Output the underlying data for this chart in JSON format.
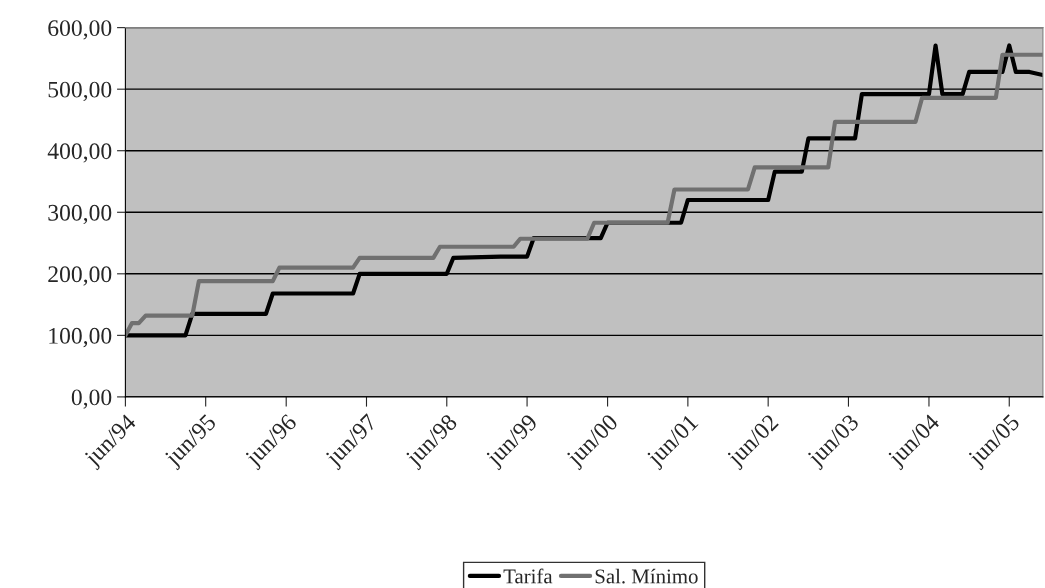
{
  "chart_data": {
    "type": "line",
    "series": [
      {
        "name": "Tarifa",
        "color": "#000000",
        "x": [
          "1994-06",
          "1995-03",
          "1995-04",
          "1996-03",
          "1996-04",
          "1997-04",
          "1997-05",
          "1998-06",
          "1998-07",
          "1999-02",
          "1999-06",
          "1999-07",
          "2000-01",
          "2000-05",
          "2000-06",
          "2001-05",
          "2001-06",
          "2002-06",
          "2002-07",
          "2002-11",
          "2002-12",
          "2003-07",
          "2003-08",
          "2004-06",
          "2004-07",
          "2004-08",
          "2004-11",
          "2004-12",
          "2005-05",
          "2005-06",
          "2005-07",
          "2005-09",
          "2005-11"
        ],
        "values": [
          100,
          100,
          135,
          135,
          168,
          168,
          200,
          200,
          226,
          228,
          228,
          258,
          258,
          258,
          283,
          283,
          320,
          320,
          366,
          366,
          420,
          420,
          492,
          492,
          571,
          492,
          492,
          528,
          528,
          571,
          528,
          528,
          523
        ]
      },
      {
        "name": "Sal. Mínimo",
        "color": "#707070",
        "x": [
          "1994-06",
          "1994-07",
          "1994-08",
          "1994-09",
          "1995-04",
          "1995-05",
          "1996-04",
          "1996-05",
          "1997-04",
          "1997-05",
          "1998-04",
          "1998-05",
          "1999-04",
          "1999-05",
          "2000-03",
          "2000-04",
          "2001-03",
          "2001-04",
          "2002-03",
          "2002-04",
          "2003-03",
          "2003-04",
          "2004-04",
          "2004-05",
          "2005-04",
          "2005-05",
          "2005-11"
        ],
        "values": [
          100,
          120,
          120,
          132,
          132,
          188,
          188,
          210,
          210,
          226,
          226,
          244,
          244,
          257,
          257,
          283,
          283,
          337,
          337,
          373,
          373,
          447,
          447,
          486,
          486,
          556,
          556
        ]
      }
    ],
    "xlim": [
      "1994-06",
      "2005-11"
    ],
    "xticks": [
      {
        "value": "1994-06",
        "label": "jun/94"
      },
      {
        "value": "1995-06",
        "label": "jun/95"
      },
      {
        "value": "1996-06",
        "label": "jun/96"
      },
      {
        "value": "1997-06",
        "label": "jun/97"
      },
      {
        "value": "1998-06",
        "label": "jun/98"
      },
      {
        "value": "1999-06",
        "label": "jun/99"
      },
      {
        "value": "2000-06",
        "label": "jun/00"
      },
      {
        "value": "2001-06",
        "label": "jun/01"
      },
      {
        "value": "2002-06",
        "label": "jun/02"
      },
      {
        "value": "2003-06",
        "label": "jun/03"
      },
      {
        "value": "2004-06",
        "label": "jun/04"
      },
      {
        "value": "2005-06",
        "label": "jun/05"
      }
    ],
    "ylim": [
      0,
      600
    ],
    "yticks": [
      {
        "value": 0,
        "label": "0,00"
      },
      {
        "value": 100,
        "label": "100,00"
      },
      {
        "value": 200,
        "label": "200,00"
      },
      {
        "value": 300,
        "label": "300,00"
      },
      {
        "value": 400,
        "label": "400,00"
      },
      {
        "value": 500,
        "label": "500,00"
      },
      {
        "value": 600,
        "label": "600,00"
      }
    ],
    "grid": "y",
    "legend": "bottom",
    "marker": "none",
    "line_style": "solid"
  }
}
